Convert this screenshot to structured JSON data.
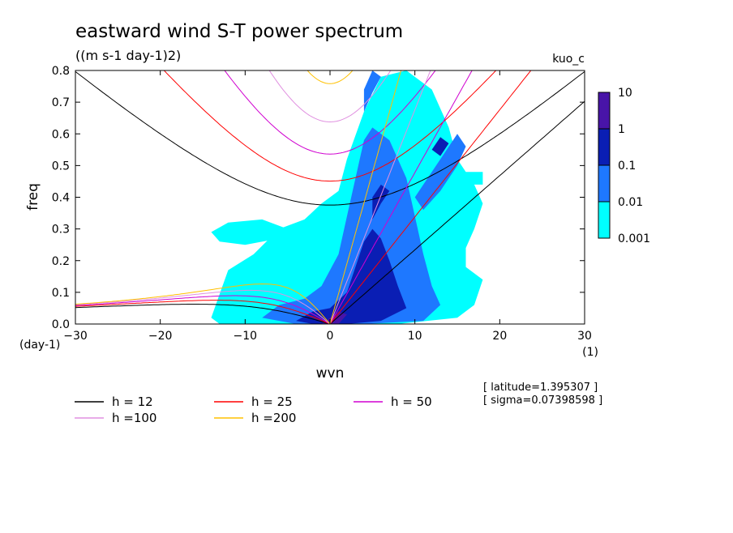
{
  "chart_data": {
    "type": "heatmap",
    "title": "eastward wind S-T power spectrum",
    "subtitle": "((m s-1 day-1)2)",
    "model_label": "kuo_c",
    "xlabel": "wvn",
    "ylabel": "freq",
    "x_units": "(1)",
    "y_units": "(day-1)",
    "xlim": [
      -30,
      30
    ],
    "ylim": [
      0,
      0.8
    ],
    "xticks": [
      -30,
      -20,
      -10,
      0,
      10,
      20,
      30
    ],
    "yticks": [
      0.0,
      0.1,
      0.2,
      0.3,
      0.4,
      0.5,
      0.6,
      0.7,
      0.8
    ],
    "colorbar": {
      "scale": "log",
      "levels": [
        "0.001",
        "0.01",
        "0.1",
        "1",
        "10"
      ],
      "colors": [
        "#00ffff",
        "#1e78ff",
        "#0a1eb4",
        "#4814a8"
      ]
    },
    "spectrum_regions": [
      {
        "level": 0,
        "polygon": [
          [
            -14,
            0.02
          ],
          [
            -12,
            0.17
          ],
          [
            -9,
            0.22
          ],
          [
            -6,
            0.3
          ],
          [
            -3,
            0.33
          ],
          [
            -1,
            0.38
          ],
          [
            1,
            0.42
          ],
          [
            2,
            0.52
          ],
          [
            4,
            0.67
          ],
          [
            6,
            0.78
          ],
          [
            9,
            0.8
          ],
          [
            12,
            0.74
          ],
          [
            14,
            0.62
          ],
          [
            15,
            0.52
          ],
          [
            17,
            0.44
          ],
          [
            18,
            0.38
          ],
          [
            17,
            0.3
          ],
          [
            16,
            0.24
          ],
          [
            16,
            0.18
          ],
          [
            18,
            0.14
          ],
          [
            17,
            0.06
          ],
          [
            15,
            0.02
          ],
          [
            8,
            0.0
          ],
          [
            0,
            0.0
          ],
          [
            -8,
            0.0
          ],
          [
            -13,
            0.0
          ]
        ]
      },
      {
        "level": 0,
        "polygon": [
          [
            -13,
            0.26
          ],
          [
            -10,
            0.25
          ],
          [
            -6,
            0.27
          ],
          [
            -5,
            0.3
          ],
          [
            -8,
            0.33
          ],
          [
            -12,
            0.32
          ],
          [
            -14,
            0.29
          ]
        ]
      },
      {
        "level": 0,
        "polygon": [
          [
            16,
            0.44
          ],
          [
            18,
            0.44
          ],
          [
            18,
            0.48
          ],
          [
            16,
            0.48
          ]
        ]
      },
      {
        "level": 0,
        "polygon": [
          [
            12,
            0.22
          ],
          [
            14,
            0.2
          ],
          [
            14,
            0.24
          ],
          [
            12,
            0.25
          ]
        ]
      },
      {
        "level": 1,
        "polygon": [
          [
            -8,
            0.02
          ],
          [
            -6,
            0.06
          ],
          [
            -3,
            0.08
          ],
          [
            -1,
            0.12
          ],
          [
            1,
            0.22
          ],
          [
            2,
            0.34
          ],
          [
            3,
            0.46
          ],
          [
            4,
            0.58
          ],
          [
            5,
            0.62
          ],
          [
            7,
            0.58
          ],
          [
            9,
            0.46
          ],
          [
            10,
            0.34
          ],
          [
            11,
            0.22
          ],
          [
            12,
            0.12
          ],
          [
            13,
            0.06
          ],
          [
            11,
            0.01
          ],
          [
            4,
            0.0
          ],
          [
            -4,
            0.0
          ]
        ]
      },
      {
        "level": 1,
        "polygon": [
          [
            11,
            0.36
          ],
          [
            13,
            0.42
          ],
          [
            15,
            0.5
          ],
          [
            16,
            0.56
          ],
          [
            15,
            0.6
          ],
          [
            13,
            0.52
          ],
          [
            11,
            0.44
          ],
          [
            10,
            0.4
          ]
        ]
      },
      {
        "level": 1,
        "polygon": [
          [
            4,
            0.67
          ],
          [
            5,
            0.73
          ],
          [
            6,
            0.78
          ],
          [
            5,
            0.8
          ],
          [
            4,
            0.74
          ]
        ]
      },
      {
        "level": 2,
        "polygon": [
          [
            -4,
            0.01
          ],
          [
            -2,
            0.04
          ],
          [
            0,
            0.05
          ],
          [
            2,
            0.1
          ],
          [
            3,
            0.18
          ],
          [
            4,
            0.26
          ],
          [
            5,
            0.3
          ],
          [
            6,
            0.27
          ],
          [
            7,
            0.2
          ],
          [
            8,
            0.12
          ],
          [
            9,
            0.05
          ],
          [
            6,
            0.01
          ],
          [
            2,
            0.0
          ],
          [
            -2,
            0.0
          ]
        ]
      },
      {
        "level": 2,
        "polygon": [
          [
            5,
            0.33
          ],
          [
            6,
            0.38
          ],
          [
            7,
            0.42
          ],
          [
            6,
            0.44
          ],
          [
            5,
            0.4
          ]
        ]
      },
      {
        "level": 2,
        "polygon": [
          [
            13,
            0.53
          ],
          [
            14,
            0.57
          ],
          [
            13,
            0.59
          ],
          [
            12,
            0.55
          ]
        ]
      },
      {
        "level": 3,
        "polygon": [
          [
            -1,
            0.0
          ],
          [
            0,
            0.02
          ],
          [
            1,
            0.04
          ],
          [
            2,
            0.03
          ],
          [
            1,
            0.0
          ]
        ]
      }
    ],
    "dispersion_curves": [
      {
        "name": "h = 12",
        "h": 12,
        "color": "#000000"
      },
      {
        "name": "h = 25",
        "h": 25,
        "color": "#ff0000"
      },
      {
        "name": "h = 50",
        "h": 50,
        "color": "#d000d0"
      },
      {
        "name": "h =100",
        "h": 100,
        "color": "#e090e0"
      },
      {
        "name": "h =200",
        "h": 200,
        "color": "#ffc000"
      }
    ],
    "annotations": [
      "[ latitude=1.395307 ]",
      "[ sigma=0.07398598 ]"
    ]
  }
}
